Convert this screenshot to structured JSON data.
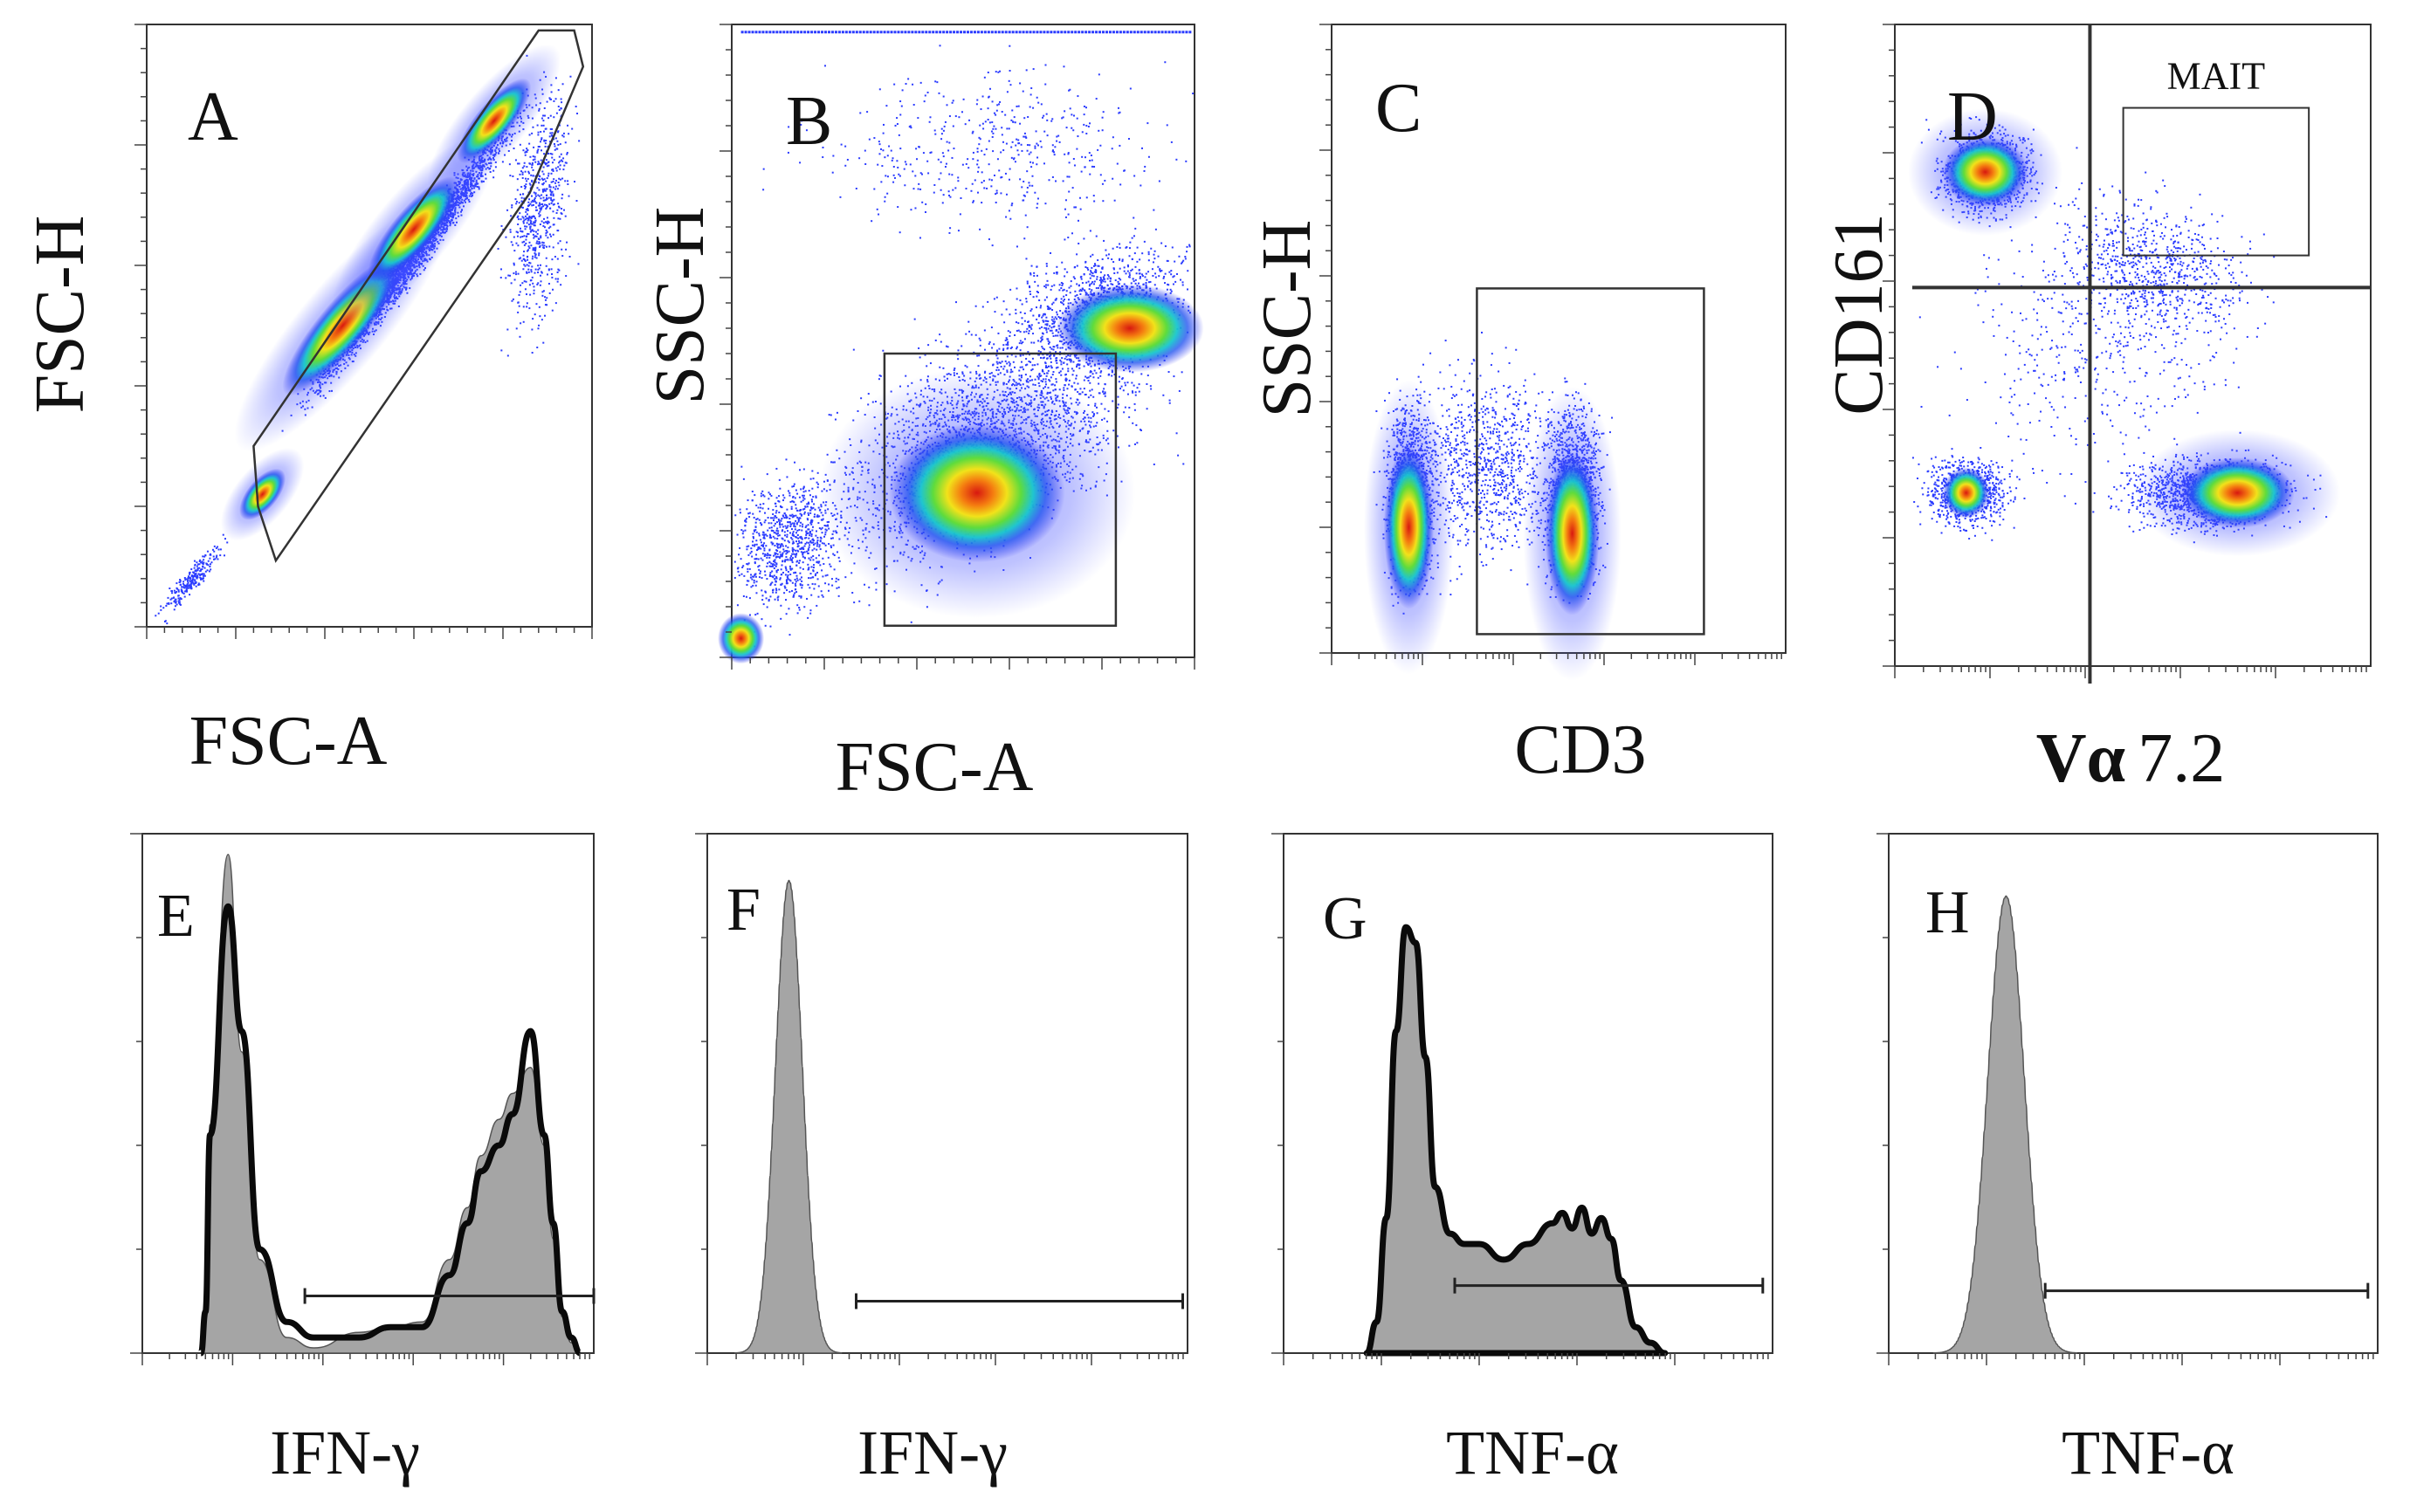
{
  "chart_data": [
    {
      "type": "scatter",
      "panel": "A",
      "plot_style": "density",
      "xlabel": "FSC-A",
      "ylabel": "FSC-H",
      "populations": [
        {
          "note": "diagonal singlet population, density peak",
          "x": 0.44,
          "y": 0.5
        }
      ],
      "gates": [
        {
          "shape": "polygon",
          "vertices": [
            [
              0.25,
              0.2
            ],
            [
              0.29,
              0.11
            ],
            [
              0.86,
              0.72
            ],
            [
              0.98,
              0.93
            ],
            [
              0.96,
              0.99
            ],
            [
              0.88,
              0.99
            ],
            [
              0.24,
              0.3
            ]
          ]
        }
      ]
    },
    {
      "type": "scatter",
      "panel": "B",
      "plot_style": "density",
      "xlabel": "FSC-A",
      "ylabel": "SSC-H",
      "populations": [
        {
          "note": "lymphocyte cluster",
          "x": 0.53,
          "y": 0.26
        },
        {
          "note": "debris near origin",
          "x": 0.02,
          "y": 0.03
        }
      ],
      "gates": [
        {
          "shape": "rect",
          "x": [
            0.33,
            0.83
          ],
          "y": [
            0.05,
            0.48
          ]
        }
      ]
    },
    {
      "type": "scatter",
      "panel": "C",
      "plot_style": "density",
      "xlabel": "CD3",
      "ylabel": "SSC-H",
      "populations": [
        {
          "note": "CD3 negative cluster",
          "x": 0.17,
          "y": 0.2
        },
        {
          "note": "CD3 positive cluster",
          "x": 0.53,
          "y": 0.19
        }
      ],
      "gates": [
        {
          "shape": "rect",
          "x": [
            0.32,
            0.82
          ],
          "y": [
            0.03,
            0.58
          ]
        }
      ]
    },
    {
      "type": "scatter",
      "panel": "D",
      "plot_style": "density",
      "xlabel_prefix": "Vα",
      "xlabel_suffix": "7.2",
      "ylabel": "CD161",
      "quadrant_split": {
        "x": 0.41,
        "y": 0.59
      },
      "populations": [
        {
          "note": "CD161+ Vα7.2-",
          "x": 0.19,
          "y": 0.77
        },
        {
          "note": "CD161- Vα7.2+",
          "x": 0.72,
          "y": 0.27
        },
        {
          "note": "CD161- Vα7.2-",
          "x": 0.15,
          "y": 0.27
        }
      ],
      "gates": [
        {
          "name": "MAIT",
          "shape": "rect",
          "x": [
            0.48,
            0.87
          ],
          "y": [
            0.64,
            0.87
          ]
        }
      ]
    },
    {
      "type": "area",
      "panel": "E",
      "subtype": "histogram",
      "xlabel": "IFN-γ",
      "x": [
        0.13,
        0.14,
        0.15,
        0.19,
        0.22,
        0.26,
        0.32,
        0.38,
        0.48,
        0.55,
        0.62,
        0.68,
        0.72,
        0.75,
        0.79,
        0.82,
        0.86,
        0.89,
        0.91,
        0.93,
        0.95,
        0.97
      ],
      "stimulated": [
        0.0,
        0.08,
        0.42,
        0.86,
        0.62,
        0.2,
        0.06,
        0.03,
        0.03,
        0.05,
        0.05,
        0.15,
        0.25,
        0.35,
        0.4,
        0.46,
        0.62,
        0.42,
        0.25,
        0.08,
        0.03,
        0.0
      ],
      "control": [
        0.0,
        0.06,
        0.44,
        0.96,
        0.58,
        0.18,
        0.03,
        0.01,
        0.04,
        0.05,
        0.06,
        0.18,
        0.28,
        0.38,
        0.45,
        0.5,
        0.55,
        0.4,
        0.22,
        0.07,
        0.02,
        0.0
      ],
      "positive_gate": {
        "x": [
          0.36,
          1.0
        ],
        "y": 0.11
      }
    },
    {
      "type": "area",
      "panel": "F",
      "subtype": "histogram",
      "xlabel": "IFN-γ",
      "peak": {
        "x": 0.17,
        "height": 0.91,
        "width": 0.028
      },
      "positive_gate": {
        "x": [
          0.31,
          0.99
        ],
        "y": 0.1
      }
    },
    {
      "type": "area",
      "panel": "G",
      "subtype": "histogram",
      "xlabel": "TNF-α",
      "x": [
        0.17,
        0.19,
        0.21,
        0.23,
        0.25,
        0.27,
        0.29,
        0.31,
        0.34,
        0.37,
        0.4,
        0.45,
        0.5,
        0.55,
        0.57,
        0.59,
        0.61,
        0.63,
        0.65,
        0.67,
        0.69,
        0.72,
        0.75,
        0.78
      ],
      "stimulated": [
        0.0,
        0.06,
        0.26,
        0.62,
        0.82,
        0.79,
        0.57,
        0.32,
        0.23,
        0.21,
        0.21,
        0.18,
        0.21,
        0.25,
        0.27,
        0.24,
        0.28,
        0.23,
        0.26,
        0.22,
        0.14,
        0.05,
        0.02,
        0.0
      ],
      "positive_gate": {
        "x": [
          0.35,
          0.98
        ],
        "y": 0.13
      }
    },
    {
      "type": "area",
      "panel": "H",
      "subtype": "histogram",
      "xlabel": "TNF-α",
      "peak": {
        "x": 0.24,
        "height": 0.88,
        "width": 0.037
      },
      "positive_gate": {
        "x": [
          0.32,
          0.98
        ],
        "y": 0.12
      }
    }
  ]
}
